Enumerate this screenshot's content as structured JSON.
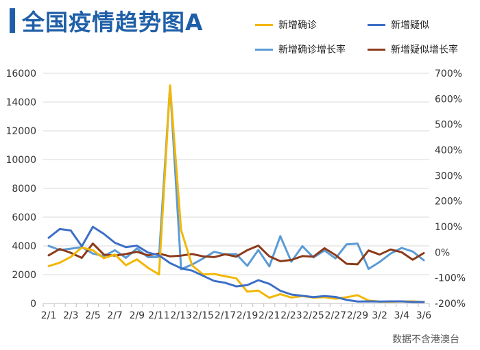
{
  "title": "全国疫情趋势图A",
  "source_note": "数据不含港澳台",
  "chart_data": {
    "type": "line",
    "title": "全国疫情趋势图A",
    "x": [
      "2/1",
      "2/2",
      "2/3",
      "2/4",
      "2/5",
      "2/6",
      "2/7",
      "2/8",
      "2/9",
      "2/10",
      "2/11",
      "2/12",
      "2/13",
      "2/14",
      "2/15",
      "2/16",
      "2/17",
      "2/18",
      "2/19",
      "2/20",
      "2/21",
      "2/22",
      "2/23",
      "2/24",
      "2/25",
      "2/26",
      "2/27",
      "2/28",
      "2/29",
      "3/1",
      "3/2",
      "3/3",
      "3/4",
      "3/5",
      "3/6"
    ],
    "x_tick_labels": [
      "2/1",
      "2/3",
      "2/5",
      "2/7",
      "2/9",
      "2/11",
      "2/13",
      "2/15",
      "2/17",
      "2/19",
      "2/21",
      "2/23",
      "2/25",
      "2/27",
      "2/29",
      "3/2",
      "3/4",
      "3/6"
    ],
    "y_left": {
      "min": 0,
      "max": 16000,
      "ticks": [
        "0",
        "2000",
        "4000",
        "6000",
        "8000",
        "10000",
        "12000",
        "14000",
        "16000"
      ]
    },
    "y_right": {
      "min": -200,
      "max": 700,
      "ticks": [
        "-200%",
        "-100%",
        "0%",
        "100%",
        "200%",
        "300%",
        "400%",
        "500%",
        "600%",
        "700%"
      ]
    },
    "series": [
      {
        "name": "新增确诊",
        "axis": "left",
        "color": "#f2b705",
        "values": [
          2590,
          2830,
          3235,
          3887,
          3694,
          3143,
          3399,
          2656,
          3062,
          2478,
          2015,
          15152,
          5090,
          2641,
          2009,
          2048,
          1886,
          1749,
          820,
          891,
          397,
          648,
          409,
          508,
          406,
          433,
          327,
          427,
          573,
          202,
          125,
          119,
          139,
          143,
          99
        ]
      },
      {
        "name": "新增疑似",
        "axis": "left",
        "color": "#3e6fc6",
        "values": [
          4562,
          5173,
          5072,
          3971,
          5328,
          4833,
          4214,
          3916,
          4008,
          3536,
          3342,
          2807,
          2450,
          2277,
          1918,
          1563,
          1432,
          1185,
          1277,
          1614,
          1361,
          882,
          620,
          530,
          439,
          508,
          452,
          248,
          132,
          141,
          129,
          143,
          143,
          102,
          99
        ]
      },
      {
        "name": "新增确诊增长率",
        "axis": "right",
        "color": "#5b9bd5",
        "values": [
          25,
          9,
          14,
          20,
          -5,
          -15,
          8,
          -22,
          15,
          -19,
          -19,
          652,
          -66,
          -48,
          -24,
          2,
          -8,
          -7,
          -53,
          9,
          -55,
          63,
          -37,
          24,
          -20,
          7,
          -24,
          31,
          34,
          -65,
          -38,
          -5,
          17,
          3,
          -31
        ]
      },
      {
        "name": "新增疑似增长率",
        "axis": "right",
        "color": "#8b3a1a",
        "values": [
          -12,
          13,
          -2,
          -22,
          34,
          -9,
          -13,
          -7,
          2,
          -12,
          -5,
          -16,
          -13,
          -7,
          -16,
          -19,
          -8,
          -17,
          8,
          26,
          -16,
          -35,
          -30,
          -15,
          -17,
          16,
          -11,
          -45,
          -47,
          7,
          -9,
          11,
          0,
          -29,
          -3
        ]
      }
    ]
  }
}
